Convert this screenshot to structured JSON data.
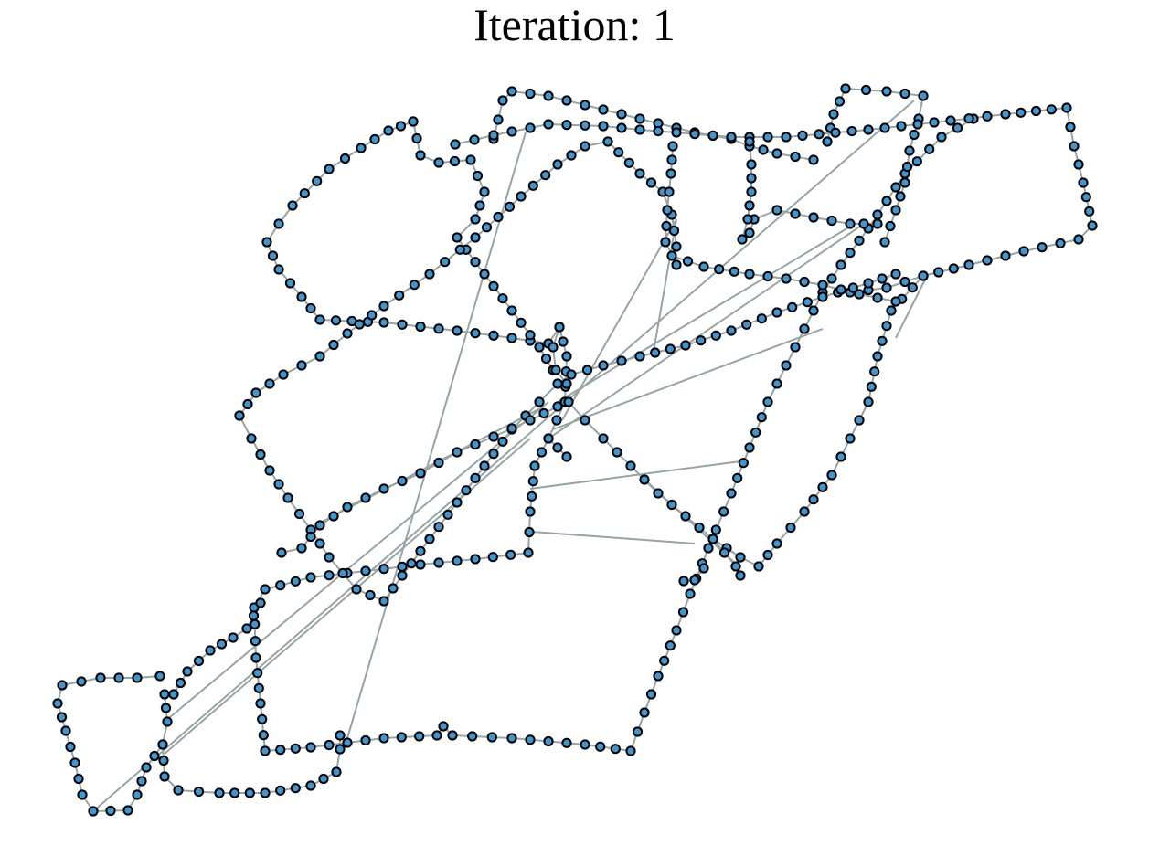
{
  "title": "Iteration: 1",
  "colors": {
    "node_fill": "#3f96d1",
    "node_stroke": "#000000",
    "edge": "#95a5a6"
  }
}
